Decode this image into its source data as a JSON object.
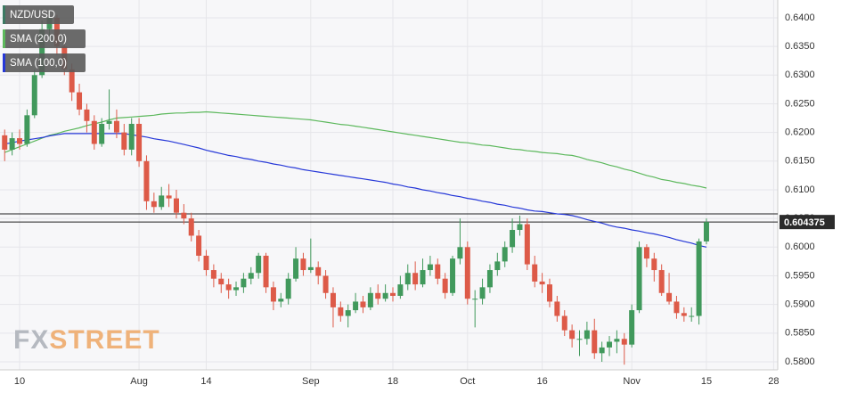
{
  "chart_data": {
    "type": "candlestick",
    "name": "NZD/USD",
    "color": "#3c7a63",
    "up_color": "#41995c",
    "down_color": "#dd5a48",
    "categories": [
      null,
      null,
      "10",
      null,
      null,
      null,
      null,
      null,
      null,
      null,
      null,
      null,
      null,
      null,
      null,
      null,
      null,
      null,
      "Aug",
      null,
      null,
      null,
      null,
      null,
      null,
      null,
      null,
      "14",
      null,
      null,
      null,
      null,
      null,
      null,
      null,
      null,
      null,
      null,
      null,
      null,
      null,
      "Sep",
      null,
      null,
      null,
      null,
      null,
      null,
      null,
      null,
      null,
      null,
      "18",
      null,
      null,
      null,
      null,
      null,
      null,
      null,
      null,
      null,
      "Oct",
      null,
      null,
      null,
      null,
      null,
      null,
      null,
      null,
      null,
      "16",
      null,
      null,
      null,
      null,
      null,
      null,
      null,
      null,
      null,
      null,
      null,
      "Nov",
      null,
      null,
      null,
      null,
      null,
      null,
      null,
      null,
      null,
      "15",
      null,
      null,
      null,
      null,
      null,
      null,
      null,
      null,
      "28"
    ],
    "open": [
      0.6195,
      0.617,
      0.619,
      0.618,
      0.623,
      0.63,
      0.638,
      0.64,
      0.635,
      0.631,
      0.627,
      0.624,
      0.622,
      0.618,
      0.6215,
      0.622,
      0.62,
      0.617,
      0.6215,
      0.615,
      0.608,
      0.607,
      0.609,
      0.6085,
      0.606,
      0.605,
      0.602,
      0.5985,
      0.596,
      0.5945,
      0.5935,
      0.5925,
      0.593,
      0.5945,
      0.5955,
      0.5985,
      0.593,
      0.5905,
      0.591,
      0.5945,
      0.598,
      0.596,
      0.5965,
      0.595,
      0.592,
      0.5895,
      0.588,
      0.589,
      0.5905,
      0.5895,
      0.592,
      0.591,
      0.592,
      0.5915,
      0.5935,
      0.5955,
      0.5935,
      0.596,
      0.597,
      0.5945,
      0.592,
      0.598,
      0.6,
      0.591,
      0.591,
      0.593,
      0.596,
      0.5975,
      0.6,
      0.603,
      0.604,
      0.597,
      0.594,
      0.5935,
      0.5905,
      0.588,
      0.5855,
      0.584,
      0.584,
      0.5855,
      0.5815,
      0.5825,
      0.5835,
      0.584,
      0.583,
      0.589,
      0.6,
      0.598,
      0.596,
      0.592,
      0.5905,
      0.5885,
      0.588,
      0.588,
      0.601,
      null,
      null,
      null,
      null,
      null,
      null,
      null,
      null,
      null
    ],
    "high": [
      0.6205,
      0.62,
      0.6205,
      0.624,
      0.631,
      0.6395,
      0.6412,
      0.6405,
      0.636,
      0.632,
      0.6285,
      0.625,
      0.623,
      0.6225,
      0.6275,
      0.624,
      0.6215,
      0.6225,
      0.6225,
      0.616,
      0.6095,
      0.6105,
      0.611,
      0.61,
      0.6075,
      0.606,
      0.603,
      0.5995,
      0.597,
      0.5955,
      0.5945,
      0.594,
      0.5955,
      0.5965,
      0.599,
      0.599,
      0.594,
      0.592,
      0.5955,
      0.6,
      0.599,
      0.6015,
      0.5975,
      0.596,
      0.593,
      0.5905,
      0.59,
      0.592,
      0.5915,
      0.593,
      0.5935,
      0.5935,
      0.593,
      0.595,
      0.597,
      0.5975,
      0.598,
      0.5985,
      0.598,
      0.5955,
      0.5985,
      0.605,
      0.601,
      0.5925,
      0.5945,
      0.597,
      0.599,
      0.601,
      0.605,
      0.6055,
      0.605,
      0.5985,
      0.5955,
      0.5945,
      0.5915,
      0.589,
      0.5865,
      0.5855,
      0.587,
      0.5875,
      0.5835,
      0.5845,
      0.5855,
      0.585,
      0.59,
      0.601,
      0.6005,
      0.599,
      0.597,
      0.5955,
      0.5915,
      0.5895,
      0.5895,
      0.6015,
      0.605,
      null,
      null,
      null,
      null,
      null,
      null,
      null,
      null,
      null
    ],
    "low": [
      0.615,
      0.616,
      0.617,
      0.6175,
      0.6225,
      0.6295,
      0.636,
      0.6335,
      0.63,
      0.6255,
      0.623,
      0.62,
      0.617,
      0.6175,
      0.6205,
      0.619,
      0.616,
      0.616,
      0.614,
      0.6065,
      0.606,
      0.6065,
      0.607,
      0.605,
      0.604,
      0.601,
      0.5975,
      0.595,
      0.593,
      0.592,
      0.591,
      0.5915,
      0.592,
      0.5935,
      0.5945,
      0.592,
      0.589,
      0.5895,
      0.59,
      0.594,
      0.595,
      0.5955,
      0.5935,
      0.591,
      0.586,
      0.587,
      0.586,
      0.5885,
      0.5885,
      0.589,
      0.59,
      0.5905,
      0.5905,
      0.591,
      0.5925,
      0.5925,
      0.593,
      0.595,
      0.5935,
      0.591,
      0.5915,
      0.597,
      0.59,
      0.586,
      0.59,
      0.592,
      0.595,
      0.5965,
      0.599,
      0.602,
      0.596,
      0.593,
      0.592,
      0.5895,
      0.587,
      0.5845,
      0.5825,
      0.581,
      0.583,
      0.5805,
      0.58,
      0.581,
      0.5815,
      0.5795,
      0.5825,
      0.5885,
      0.5965,
      0.594,
      0.5915,
      0.59,
      0.5875,
      0.587,
      0.587,
      0.5865,
      0.6005,
      null,
      null,
      null,
      null,
      null,
      null,
      null,
      null,
      null
    ],
    "close": [
      0.617,
      0.619,
      0.618,
      0.623,
      0.63,
      0.638,
      0.64,
      0.635,
      0.631,
      0.627,
      0.624,
      0.622,
      0.618,
      0.6215,
      0.622,
      0.62,
      0.617,
      0.6215,
      0.615,
      0.608,
      0.607,
      0.609,
      0.6085,
      0.606,
      0.605,
      0.602,
      0.5985,
      0.596,
      0.5945,
      0.5935,
      0.5925,
      0.593,
      0.5945,
      0.5955,
      0.5985,
      0.593,
      0.5905,
      0.591,
      0.5945,
      0.598,
      0.596,
      0.5965,
      0.595,
      0.592,
      0.5895,
      0.588,
      0.589,
      0.5905,
      0.5895,
      0.592,
      0.591,
      0.592,
      0.5915,
      0.5935,
      0.5955,
      0.5935,
      0.596,
      0.597,
      0.5945,
      0.592,
      0.598,
      0.6,
      0.591,
      0.591,
      0.593,
      0.596,
      0.5975,
      0.6,
      0.603,
      0.604,
      0.597,
      0.594,
      0.5935,
      0.5905,
      0.588,
      0.5855,
      0.584,
      0.584,
      0.5855,
      0.5815,
      0.5825,
      0.5835,
      0.584,
      0.583,
      0.589,
      0.6,
      0.598,
      0.596,
      0.592,
      0.5905,
      0.5885,
      0.588,
      0.588,
      0.601,
      0.604375,
      null,
      null,
      null,
      null,
      null,
      null,
      null,
      null,
      null
    ],
    "series": [
      {
        "name": "SMA (200,0)",
        "color": "#5cb85c",
        "values": [
          0.6165,
          0.617,
          0.6175,
          0.618,
          0.6185,
          0.619,
          0.6195,
          0.6198,
          0.6202,
          0.6205,
          0.6208,
          0.6212,
          0.6215,
          0.6218,
          0.6222,
          0.6225,
          0.6226,
          0.6227,
          0.6228,
          0.6229,
          0.623,
          0.6232,
          0.6233,
          0.6234,
          0.6234,
          0.6235,
          0.6235,
          0.6236,
          0.6235,
          0.6234,
          0.6233,
          0.6232,
          0.6231,
          0.623,
          0.6229,
          0.6228,
          0.6227,
          0.6226,
          0.6225,
          0.6224,
          0.6223,
          0.6222,
          0.622,
          0.6218,
          0.6216,
          0.6214,
          0.6213,
          0.6211,
          0.6209,
          0.6207,
          0.6205,
          0.6203,
          0.6201,
          0.6199,
          0.6197,
          0.6195,
          0.6193,
          0.6191,
          0.6189,
          0.6187,
          0.6185,
          0.6183,
          0.6182,
          0.618,
          0.6178,
          0.6177,
          0.6175,
          0.6173,
          0.6171,
          0.617,
          0.6168,
          0.6167,
          0.6165,
          0.6164,
          0.6163,
          0.6161,
          0.616,
          0.6157,
          0.6153,
          0.615,
          0.6147,
          0.6143,
          0.614,
          0.6136,
          0.6133,
          0.6129,
          0.6125,
          0.6122,
          0.6118,
          0.6116,
          0.6113,
          0.6111,
          0.6108,
          0.6106,
          0.6103,
          null,
          null,
          null,
          null,
          null,
          null,
          null,
          null,
          null
        ]
      },
      {
        "name": "SMA (100,0)",
        "color": "#2638d8",
        "values": [
          0.618,
          0.6182,
          0.6185,
          0.6187,
          0.6189,
          0.6191,
          0.6194,
          0.6196,
          0.6198,
          0.6198,
          0.6198,
          0.6198,
          0.6198,
          0.6198,
          0.6198,
          0.6198,
          0.6198,
          0.6196,
          0.6194,
          0.6192,
          0.6189,
          0.6187,
          0.6185,
          0.6182,
          0.6179,
          0.6176,
          0.6173,
          0.6169,
          0.6166,
          0.6163,
          0.616,
          0.6158,
          0.6155,
          0.6153,
          0.615,
          0.6148,
          0.6145,
          0.6143,
          0.614,
          0.6138,
          0.6135,
          0.6133,
          0.6131,
          0.6129,
          0.6127,
          0.6125,
          0.6123,
          0.6121,
          0.6119,
          0.6117,
          0.6115,
          0.6113,
          0.611,
          0.6108,
          0.6105,
          0.6103,
          0.61,
          0.6098,
          0.6095,
          0.6093,
          0.609,
          0.6088,
          0.6085,
          0.6083,
          0.608,
          0.6078,
          0.6075,
          0.6073,
          0.607,
          0.6068,
          0.6065,
          0.6063,
          0.6062,
          0.606,
          0.6058,
          0.6057,
          0.6055,
          0.6052,
          0.6048,
          0.6045,
          0.6042,
          0.6038,
          0.6035,
          0.6033,
          0.603,
          0.6028,
          0.6025,
          0.6023,
          0.602,
          0.6017,
          0.6013,
          0.601,
          0.6007,
          0.6003,
          0.6,
          null,
          null,
          null,
          null,
          null,
          null,
          null,
          null,
          null
        ]
      }
    ],
    "hlines": [
      0.6058,
      0.604375
    ],
    "last_price": 0.604375,
    "ylim": [
      0.5786,
      0.6431
    ],
    "yticks": [
      {
        "value": 0.58,
        "label": "0.5800"
      },
      {
        "value": 0.585,
        "label": "0.5850"
      },
      {
        "value": 0.59,
        "label": "0.5900"
      },
      {
        "value": 0.595,
        "label": "0.5950"
      },
      {
        "value": 0.6,
        "label": "0.6000"
      },
      {
        "value": 0.605,
        "label": "0.6050"
      },
      {
        "value": 0.61,
        "label": "0.6100"
      },
      {
        "value": 0.615,
        "label": "0.6150"
      },
      {
        "value": 0.62,
        "label": "0.6200"
      },
      {
        "value": 0.625,
        "label": "0.6250"
      },
      {
        "value": 0.63,
        "label": "0.6300"
      },
      {
        "value": 0.635,
        "label": "0.6350"
      },
      {
        "value": 0.64,
        "label": "0.6400"
      }
    ],
    "grid": true,
    "watermark": [
      "FX",
      "STREET"
    ]
  }
}
